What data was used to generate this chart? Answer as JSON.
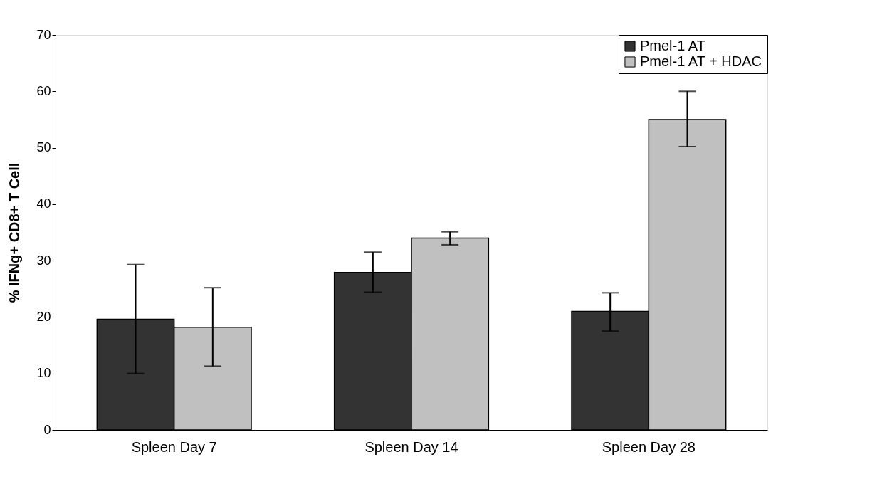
{
  "chart_data": {
    "type": "bar",
    "ylabel": "% IFNg+ CD8+ T Cell",
    "categories": [
      "Spleen Day 7",
      "Spleen Day 14",
      "Spleen Day 28"
    ],
    "series": [
      {
        "name": "Pmel-1 AT",
        "color": "#333333",
        "values": [
          19.6,
          27.9,
          21.0
        ],
        "errors": [
          [
            10.0,
            29.3
          ],
          [
            24.4,
            31.5
          ],
          [
            17.5,
            24.3
          ]
        ]
      },
      {
        "name": "Pmel-1 AT + HDAC",
        "color": "#c0c0c0",
        "values": [
          18.2,
          34.0,
          55.0
        ],
        "errors": [
          [
            11.3,
            25.2
          ],
          [
            32.8,
            35.1
          ],
          [
            50.2,
            60.0
          ]
        ]
      }
    ],
    "ylim": [
      0,
      70
    ],
    "yticks": [
      0,
      10,
      20,
      30,
      40,
      50,
      60,
      70
    ],
    "grid": false,
    "legend": "top right"
  }
}
